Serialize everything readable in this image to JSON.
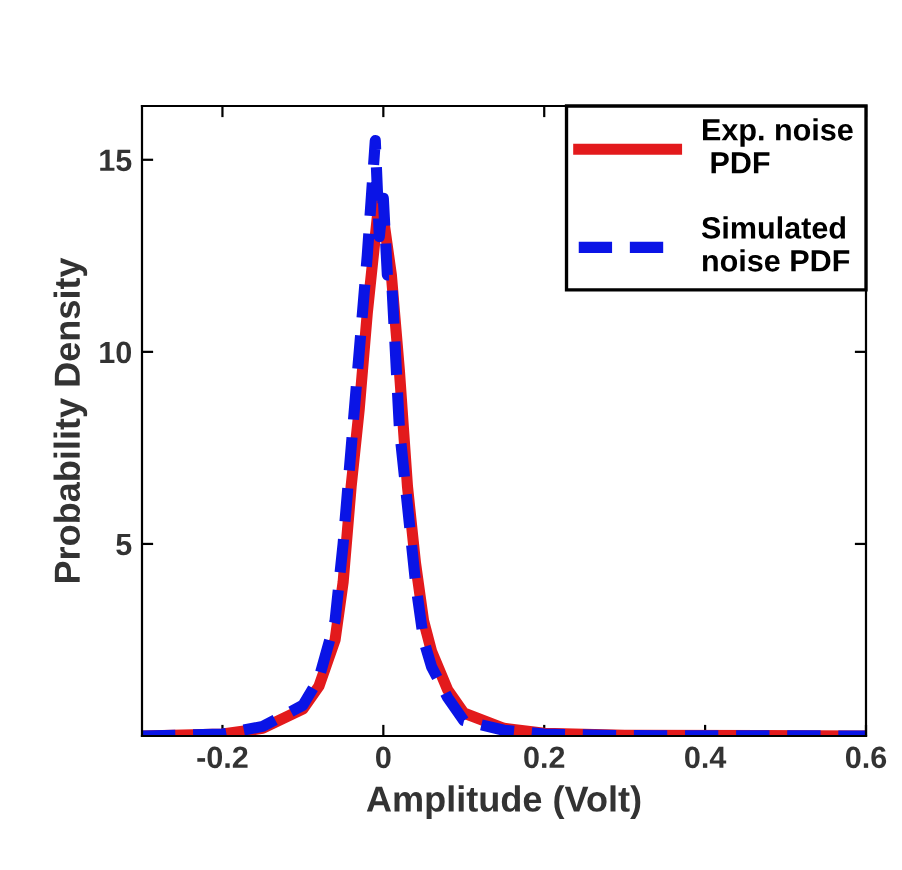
{
  "chart_data": {
    "type": "line",
    "xlabel": "Amplitude (Volt)",
    "ylabel": "Probability Density",
    "xlim": [
      -0.3,
      0.6
    ],
    "ylim": [
      0,
      16.4
    ],
    "xticks": [
      -0.2,
      0,
      0.2,
      0.4,
      0.6
    ],
    "yticks": [
      5,
      10,
      15
    ],
    "grid": false,
    "legend": "top right",
    "marker": "none",
    "series": [
      {
        "name": "Exp. noise\n PDF",
        "color": "#e31a1c",
        "line_style": "solid",
        "x": [
          -0.3,
          -0.2,
          -0.15,
          -0.1,
          -0.08,
          -0.06,
          -0.05,
          -0.04,
          -0.03,
          -0.02,
          -0.01,
          -0.005,
          0.0,
          0.01,
          0.02,
          0.03,
          0.04,
          0.05,
          0.06,
          0.08,
          0.1,
          0.15,
          0.2,
          0.3,
          0.6
        ],
        "values": [
          0,
          0.05,
          0.2,
          0.7,
          1.3,
          2.5,
          4,
          6.5,
          8.5,
          11,
          13,
          14,
          13.5,
          12,
          9.5,
          6.5,
          4.5,
          3,
          2.2,
          1.2,
          0.6,
          0.2,
          0.07,
          0.02,
          0
        ]
      },
      {
        "name": "Simulated\nnoise PDF",
        "color": "#0a14e6",
        "line_style": "dashed",
        "x": [
          -0.3,
          -0.2,
          -0.15,
          -0.1,
          -0.08,
          -0.06,
          -0.05,
          -0.04,
          -0.03,
          -0.02,
          -0.01,
          -0.005,
          0.0,
          0.005,
          0.01,
          0.02,
          0.03,
          0.04,
          0.05,
          0.06,
          0.08,
          0.1,
          0.15,
          0.2,
          0.3,
          0.6
        ],
        "values": [
          0,
          0.05,
          0.25,
          0.8,
          1.5,
          3,
          5,
          7.5,
          10,
          12.5,
          15.5,
          13,
          14,
          12,
          12,
          8,
          6,
          4,
          2.5,
          1.8,
          1,
          0.4,
          0.15,
          0.05,
          0.01,
          0
        ]
      }
    ]
  }
}
